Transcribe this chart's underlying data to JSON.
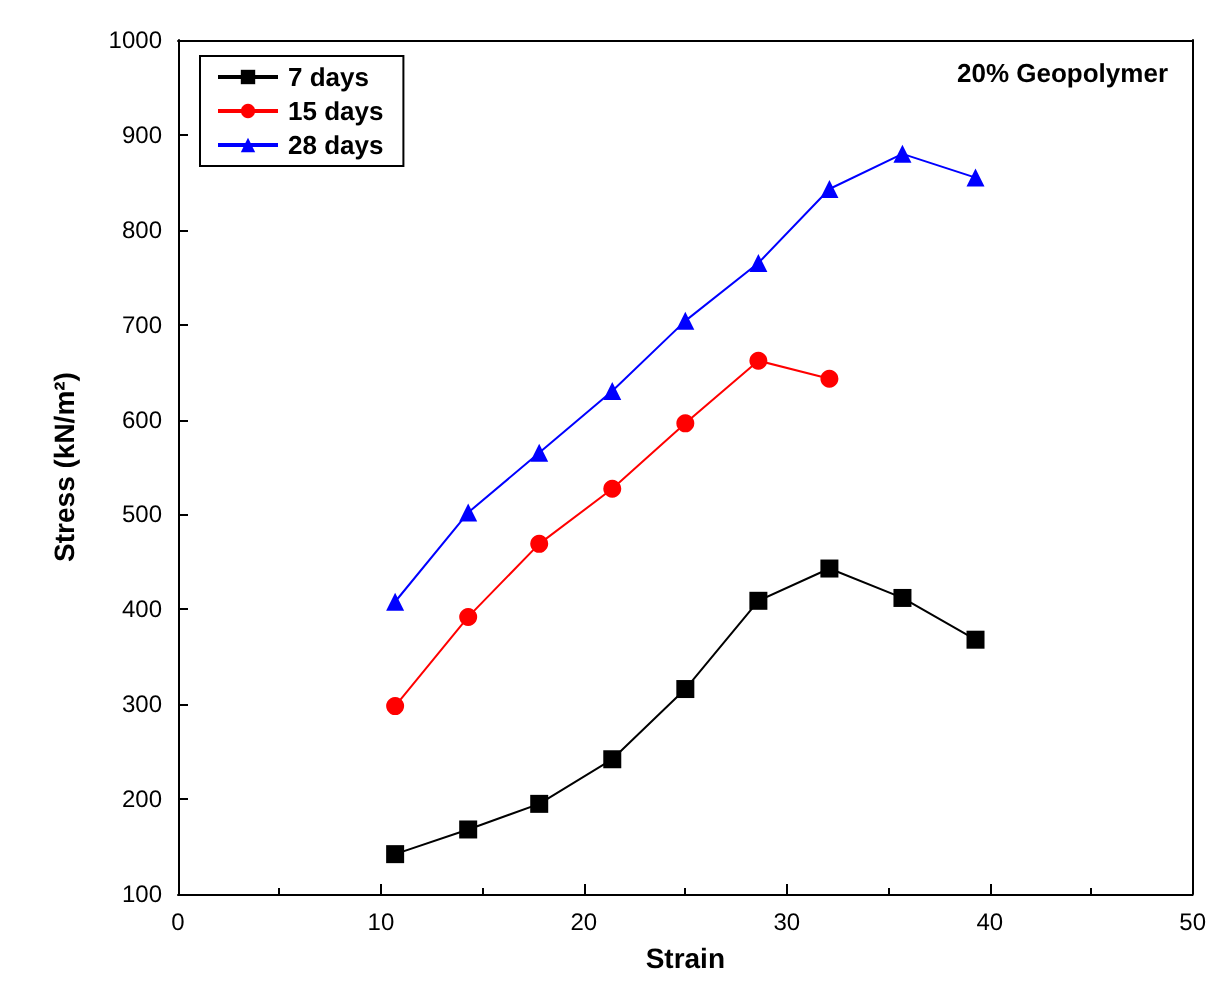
{
  "chart_data": {
    "type": "line",
    "xlabel": "Strain",
    "ylabel": "Stress (kN/m²)",
    "annotations": [
      "20% Geopolymer"
    ],
    "xlim": [
      0,
      50
    ],
    "xticks": [
      0,
      10,
      20,
      30,
      40,
      50
    ],
    "ylim": [
      100,
      1000
    ],
    "yticks": [
      100,
      200,
      300,
      400,
      500,
      600,
      700,
      800,
      900,
      1000
    ],
    "grid": false,
    "legend": "top left",
    "series": [
      {
        "name": "7 days",
        "color": "#000000",
        "marker": "square",
        "x": [
          10.7,
          14.3,
          17.8,
          21.4,
          25,
          28.6,
          32.1,
          35.7,
          39.3
        ],
        "values": [
          142,
          168,
          195,
          242,
          316,
          409,
          443,
          412,
          368
        ]
      },
      {
        "name": "15 days",
        "color": "#ff0000",
        "marker": "circle",
        "x": [
          10.7,
          14.3,
          17.8,
          21.4,
          25,
          28.6,
          32.1
        ],
        "values": [
          298,
          392,
          469,
          527,
          596,
          662,
          643
        ]
      },
      {
        "name": "28 days",
        "color": "#0000ff",
        "marker": "triangle",
        "x": [
          10.7,
          14.3,
          17.8,
          21.4,
          25,
          28.6,
          32.1,
          35.7,
          39.3
        ],
        "values": [
          408,
          502,
          565,
          630,
          704,
          765,
          843,
          880,
          855
        ]
      }
    ]
  }
}
